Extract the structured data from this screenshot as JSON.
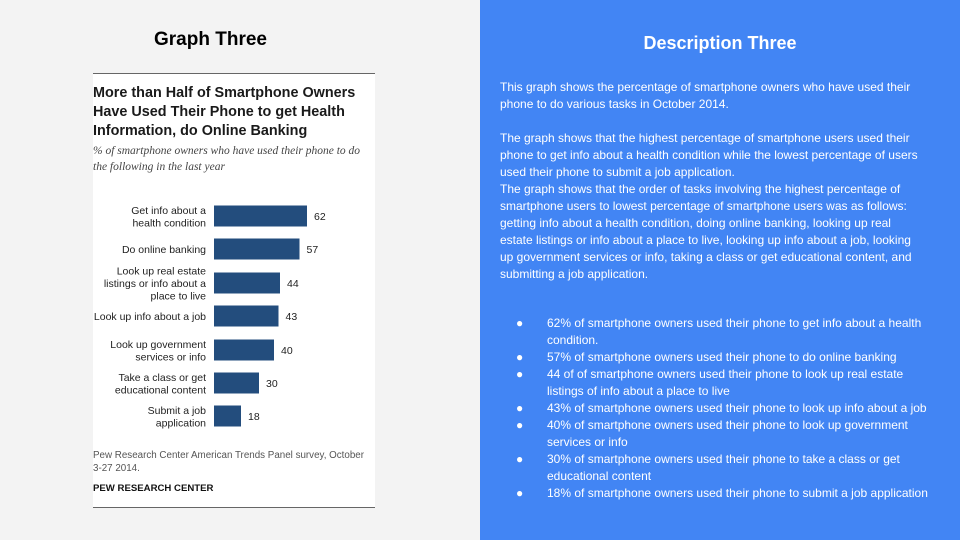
{
  "slide": {
    "left_title": "Graph Three",
    "right_title": "Description Three"
  },
  "colors": {
    "bar": "#234d7d",
    "right_panel": "#4285f4",
    "left_panel": "#f3f3f3"
  },
  "chart_data": {
    "type": "bar",
    "orientation": "horizontal",
    "title": "More than Half of Smartphone Owners Have Used Their Phone to get Health Information, do Online Banking",
    "subtitle": "% of smartphone owners who have used their phone to do the following in the last year",
    "categories": [
      [
        "Get info about a",
        "health condition"
      ],
      [
        "Do online banking"
      ],
      [
        "Look up real estate",
        "listings or info about a",
        "place to live"
      ],
      [
        "Look up info about a job"
      ],
      [
        "Look up government",
        "services or info"
      ],
      [
        "Take a class or get",
        "educational content"
      ],
      [
        "Submit a job",
        "application"
      ]
    ],
    "values": [
      62,
      57,
      44,
      43,
      40,
      30,
      18
    ],
    "data_labels": [
      "62",
      "57",
      "44",
      "43",
      "40",
      "30",
      "18"
    ],
    "source": "Pew Research Center American Trends Panel survey, October 3-27 2014.",
    "org": "PEW RESEARCH CENTER"
  },
  "description": {
    "para1": "This graph shows the percentage of smartphone owners who have used their phone to do various tasks in October 2014.",
    "para2a": "The graph shows that the highest percentage of smartphone users used their phone to get info about a health condition while the lowest percentage of users used their phone to submit a job application.",
    "para2b": "The graph shows that the order of tasks involving the highest percentage of smartphone users to lowest percentage of smartphone users was as follows: getting info about a health condition, doing online banking, looking up real estate listings or info about a place to live, looking up info about a job, looking up government services or info, taking a class or get educational content, and submitting a job application.",
    "bullets": [
      "62% of smartphone owners used their phone to get info about a health condition.",
      "57% of smartphone owners used their phone to do online banking",
      "44 of of smartphone owners used their phone to look up real estate listings of info about a place to live",
      "43% of smartphone owners used their phone to look up info about a job",
      "40% of smartphone owners used their phone to look up government services or info",
      "30% of smartphone owners used their phone to take a class or get educational content",
      "18% of smartphone owners used their phone to submit a job application"
    ],
    "bullet_symbol": "●"
  }
}
